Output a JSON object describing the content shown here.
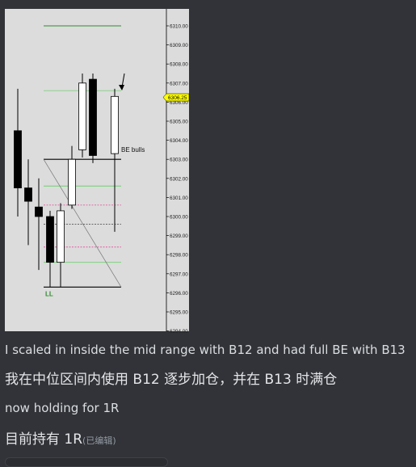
{
  "chart_data": {
    "type": "candlestick",
    "yaxis": {
      "ticks": [
        "6310.00",
        "6309.00",
        "6308.00",
        "6307.00",
        "6306.00",
        "6305.00",
        "6304.00",
        "6303.00",
        "6302.00",
        "6301.00",
        "6300.00",
        "6299.00",
        "6298.00",
        "6297.00",
        "6296.00",
        "6295.00",
        "6294.00"
      ],
      "ylim": [
        6294,
        6310.5
      ]
    },
    "price_tag": {
      "label": "6306.25",
      "value": 6306.25,
      "color": "#ffff00"
    },
    "candles": [
      {
        "open": 6304.5,
        "close": 6301.5,
        "high": 6306.7,
        "low": 6300.0,
        "color": "black"
      },
      {
        "open": 6301.5,
        "close": 6300.8,
        "high": 6303.0,
        "low": 6298.5,
        "color": "black"
      },
      {
        "open": 6300.5,
        "close": 6300.0,
        "high": 6302.0,
        "low": 6297.2,
        "color": "black"
      },
      {
        "open": 6300.0,
        "close": 6297.6,
        "high": 6300.3,
        "low": 6296.3,
        "color": "black"
      },
      {
        "open": 6297.6,
        "close": 6300.3,
        "high": 6300.7,
        "low": 6296.3,
        "color": "white"
      },
      {
        "open": 6300.6,
        "close": 6303.0,
        "high": 6303.7,
        "low": 6300.4,
        "color": "white"
      },
      {
        "open": 6303.5,
        "close": 6307.0,
        "high": 6307.5,
        "low": 6303.1,
        "color": "white"
      },
      {
        "open": 6307.2,
        "close": 6303.2,
        "high": 6307.5,
        "low": 6302.8,
        "color": "black"
      },
      {
        "open": 6303.3,
        "close": 6306.3,
        "high": 6306.7,
        "low": 6299.2,
        "color": "white"
      }
    ],
    "hlines": [
      {
        "value": 6310.0,
        "color": "#2e8b2e"
      },
      {
        "value": 6306.6,
        "color": "#8fd08f"
      },
      {
        "value": 6303.0,
        "color": "#000000"
      },
      {
        "value": 6301.6,
        "color": "#6fcf6f"
      },
      {
        "value": 6300.6,
        "color": "#e05fa0"
      },
      {
        "value": 6299.6,
        "color": "#555555"
      },
      {
        "value": 6298.4,
        "color": "#e05fa0"
      },
      {
        "value": 6297.6,
        "color": "#6fcf6f"
      },
      {
        "value": 6296.3,
        "color": "#000000"
      }
    ],
    "annotations": [
      {
        "text": "BE bulls"
      },
      {
        "text": "LL",
        "color": "#2e8b2e"
      }
    ]
  },
  "messages": [
    {
      "text": "I scaled in inside the mid range  with B12 and had full BE with B13"
    },
    {
      "text": "我在中位区间内使用 B12 逐步加仓，并在 B13 时满仓"
    },
    {
      "text": "now holding for 1R"
    },
    {
      "text": "目前持有 1R",
      "edited": "(已编辑)"
    }
  ]
}
